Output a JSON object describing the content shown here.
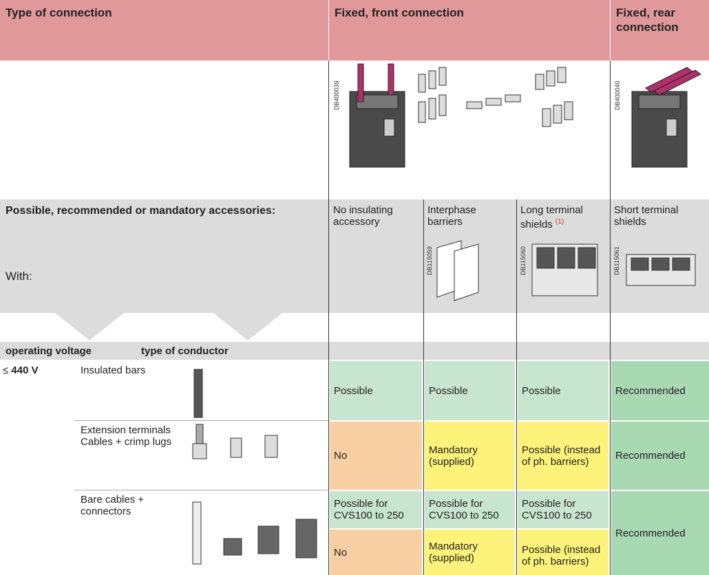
{
  "header": {
    "type_of_connection": "Type of connection",
    "front": "Fixed, front connection",
    "rear": "Fixed, rear connection"
  },
  "figure_codes": {
    "front": "DB400039",
    "rear": "DB400040"
  },
  "accessories": {
    "label": "Possible, recommended or mandatory accessories:",
    "with": "With:",
    "columns": [
      {
        "text": "No insulating accessory"
      },
      {
        "text": "Interphase barriers",
        "code": "DB115059"
      },
      {
        "text": "Long terminal shields",
        "note": "(1)",
        "code": "DB115060"
      },
      {
        "text": "Short terminal shields",
        "code": "DB115061"
      }
    ]
  },
  "table": {
    "headers": [
      "operating voltage",
      "type of conductor"
    ],
    "voltage": {
      "symbol": "≤",
      "value": "440 V"
    },
    "rows": [
      {
        "conductor": [
          "Insulated bars"
        ],
        "cells": [
          "Possible",
          "Possible",
          "Possible",
          "Recommended"
        ]
      },
      {
        "conductor": [
          "Extension terminals",
          "Cables + crimp lugs"
        ],
        "cells": [
          "No",
          "Mandatory (supplied)",
          "Possible (instead of ph. barriers)",
          "Recommended"
        ]
      },
      {
        "conductor": [
          "Bare cables + connectors"
        ],
        "cells_top": [
          "Possible for CVS100 to 250",
          "Possible for CVS100 to 250",
          "Possible for CVS100 to 250"
        ],
        "cells_bottom": [
          "No",
          "Mandatory (supplied)",
          "Possible (instead of ph. barriers)"
        ],
        "rear": "Recommended"
      }
    ]
  }
}
